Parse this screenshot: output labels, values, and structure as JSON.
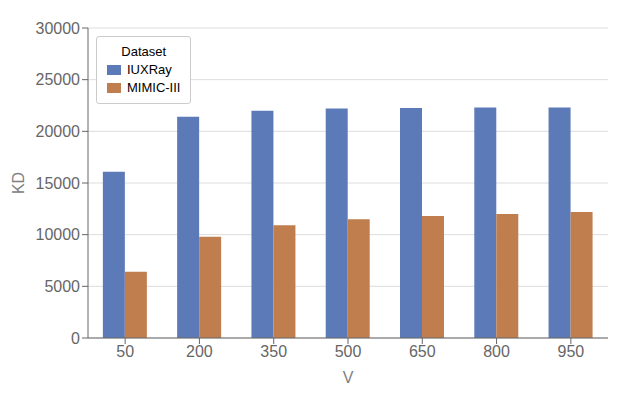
{
  "chart_data": {
    "type": "bar",
    "xlabel": "V",
    "ylabel": "KD",
    "categories": [
      50,
      200,
      350,
      500,
      650,
      800,
      950
    ],
    "series": [
      {
        "name": "IUXRay",
        "color": "#5c7ab8",
        "values": [
          16100,
          21400,
          22000,
          22200,
          22250,
          22300,
          22300
        ]
      },
      {
        "name": "MIMIC-III",
        "color": "#c07d4e",
        "values": [
          6400,
          9800,
          10900,
          11500,
          11800,
          12000,
          12200
        ]
      }
    ],
    "ylim": [
      0,
      30000
    ],
    "yticks": [
      0,
      5000,
      10000,
      15000,
      20000,
      25000,
      30000
    ],
    "grid": true,
    "legend": "upper left",
    "legend_title": "Dataset"
  }
}
